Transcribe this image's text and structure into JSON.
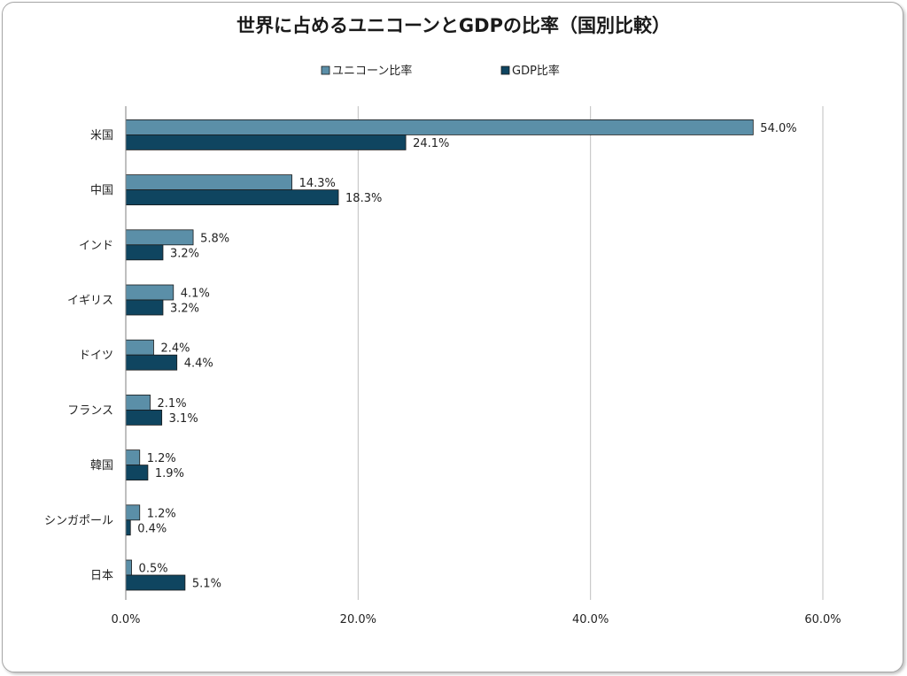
{
  "chart_data": {
    "type": "bar",
    "orientation": "horizontal",
    "title": "世界に占めるユニコーンとGDPの比率（国別比較）",
    "categories": [
      "米国",
      "中国",
      "インド",
      "イギリス",
      "ドイツ",
      "フランス",
      "韓国",
      "シンガポール",
      "日本"
    ],
    "series": [
      {
        "name": "ユニコーン比率",
        "color": "#5b8fa8",
        "values": [
          54.0,
          14.3,
          5.8,
          4.1,
          2.4,
          2.1,
          1.2,
          1.2,
          0.5
        ],
        "labels": [
          "54.0%",
          "14.3%",
          "5.8%",
          "4.1%",
          "2.4%",
          "2.1%",
          "1.2%",
          "1.2%",
          "0.5%"
        ]
      },
      {
        "name": "GDP比率",
        "color": "#0f4560",
        "values": [
          24.1,
          18.3,
          3.2,
          3.2,
          4.4,
          3.1,
          1.9,
          0.4,
          5.1
        ],
        "labels": [
          "24.1%",
          "18.3%",
          "3.2%",
          "3.2%",
          "4.4%",
          "3.1%",
          "1.9%",
          "0.4%",
          "5.1%"
        ]
      }
    ],
    "xlim": [
      0,
      60
    ],
    "xticks": [
      0,
      20,
      40,
      60
    ],
    "xtick_labels": [
      "0.0%",
      "20.0%",
      "40.0%",
      "60.0%"
    ],
    "grid": "vertical",
    "legend_position": "top"
  }
}
